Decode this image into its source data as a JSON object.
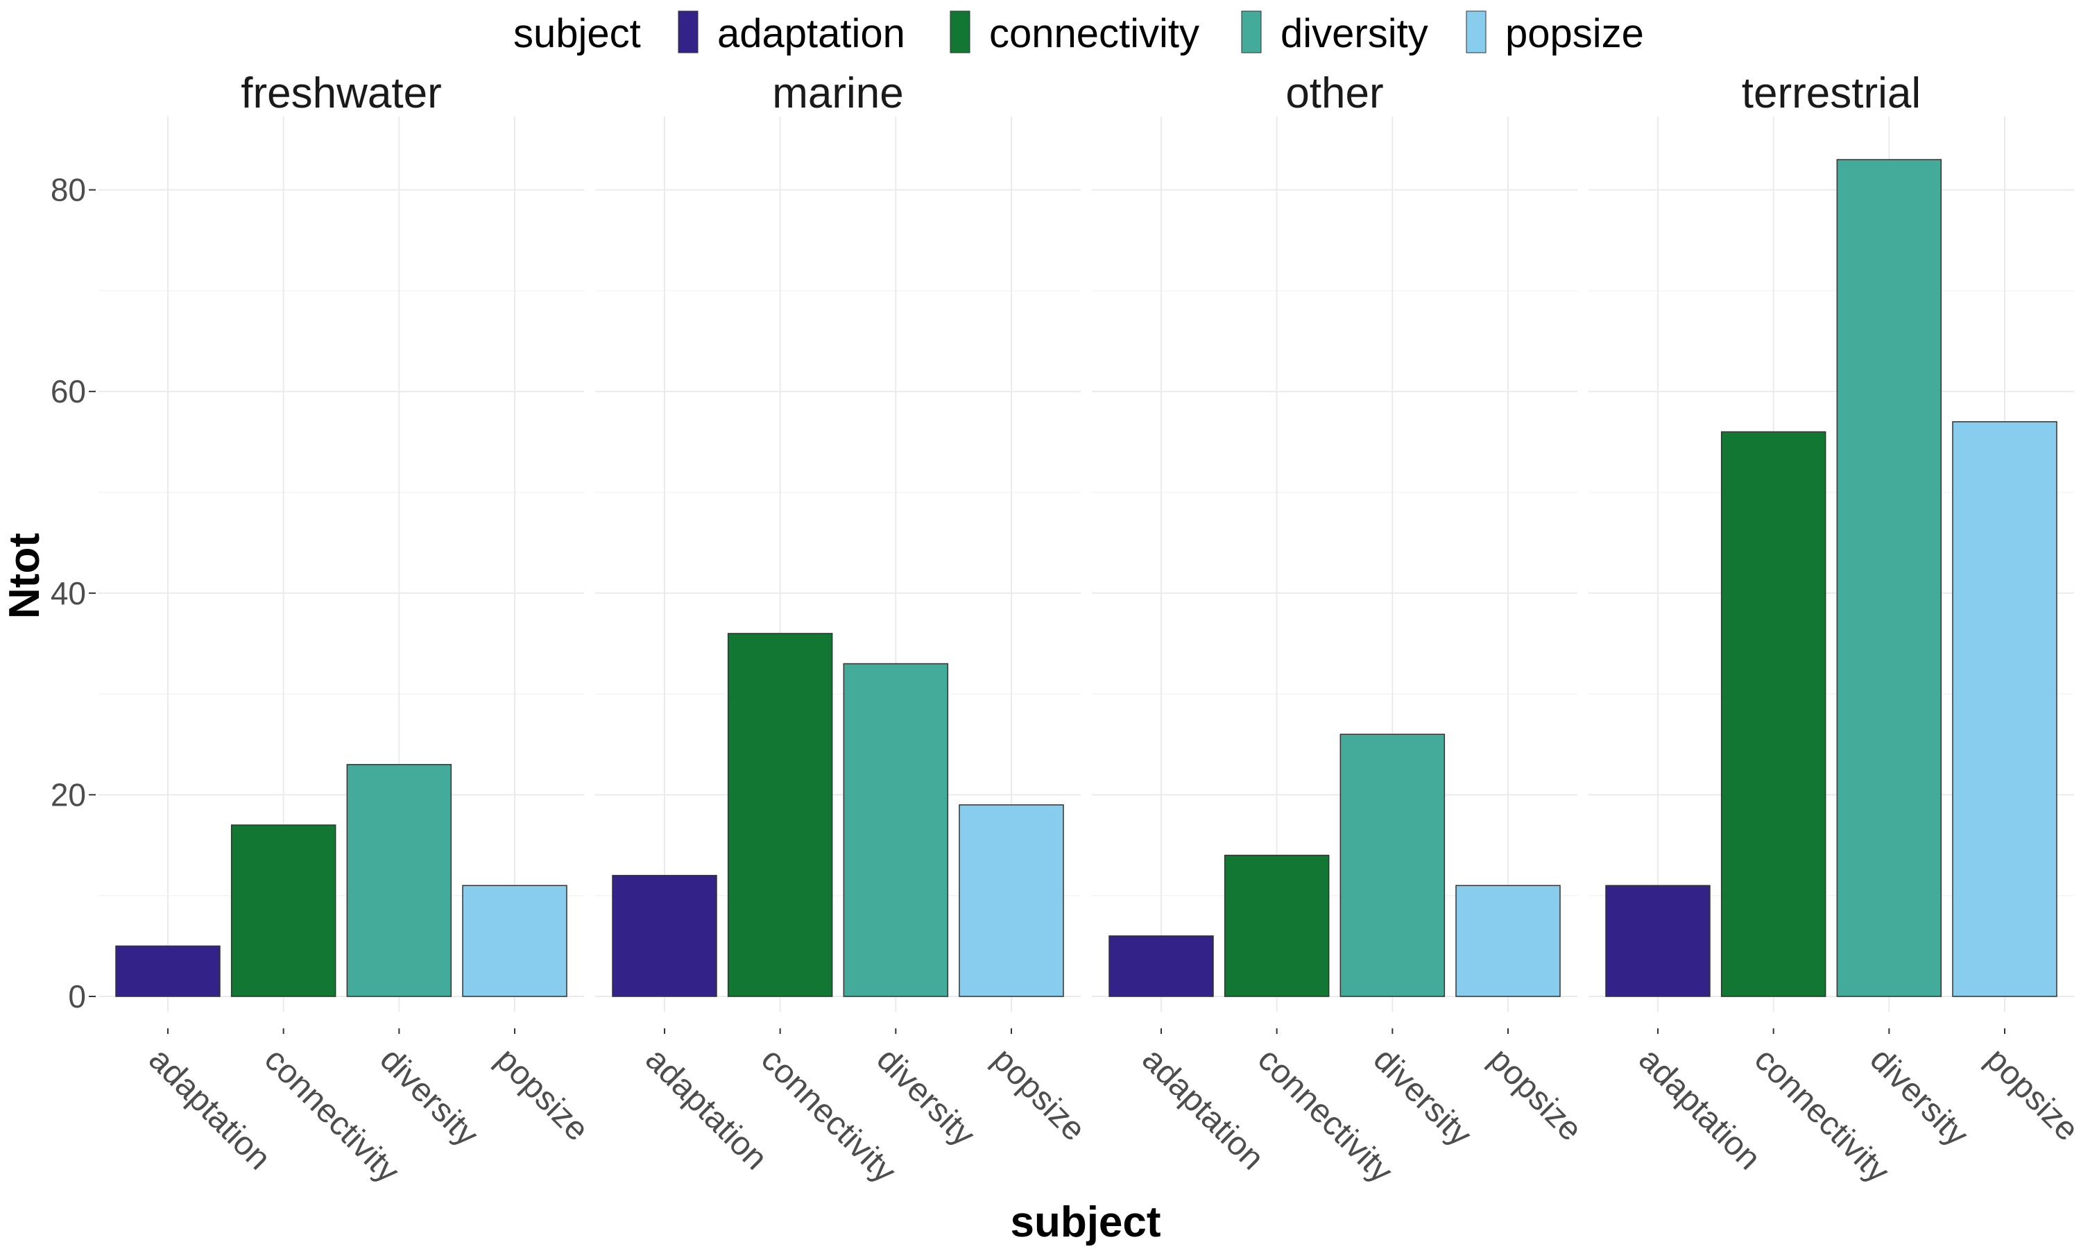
{
  "chart_data": {
    "type": "bar",
    "title": "",
    "xlabel": "subject",
    "ylabel": "Ntot",
    "ylim": [
      0,
      84
    ],
    "yticks": [
      0,
      20,
      40,
      60,
      80
    ],
    "grid": true,
    "legend_position": "top",
    "legend": {
      "title": "subject",
      "entries": [
        {
          "name": "adaptation",
          "color": "#332288"
        },
        {
          "name": "connectivity",
          "color": "#117733"
        },
        {
          "name": "diversity",
          "color": "#44AA99"
        },
        {
          "name": "popsize",
          "color": "#88CCEE"
        }
      ]
    },
    "categories": [
      "adaptation",
      "connectivity",
      "diversity",
      "popsize"
    ],
    "facets": [
      {
        "name": "freshwater",
        "values": [
          5,
          17,
          23,
          11
        ]
      },
      {
        "name": "marine",
        "values": [
          12,
          36,
          33,
          19
        ]
      },
      {
        "name": "other",
        "values": [
          6,
          14,
          26,
          11
        ]
      },
      {
        "name": "terrestrial",
        "values": [
          11,
          56,
          83,
          57
        ]
      }
    ]
  }
}
